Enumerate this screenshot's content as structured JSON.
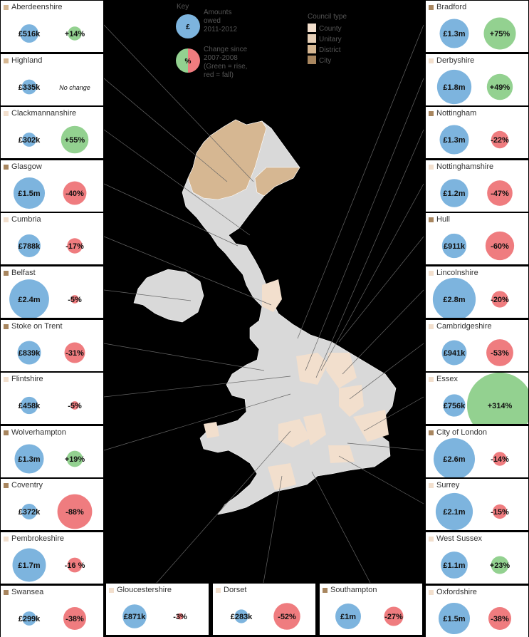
{
  "key": {
    "title": "Key",
    "amount_symbol": "£",
    "amount_text": [
      "Amounts",
      "owed",
      "2011-2012"
    ],
    "change_symbol": "%",
    "change_text": [
      "Change since",
      "2007-2008",
      "(Green = rise,",
      "red = fall)"
    ],
    "amount_color": "#7db4de",
    "rise_color": "#93d190",
    "fall_color": "#ef7c7f"
  },
  "council_type": {
    "title": "Council type",
    "types": [
      {
        "label": "County",
        "color": "#f2dfcd"
      },
      {
        "label": "Unitary",
        "color": "#e6cfb6"
      },
      {
        "label": "District",
        "color": "#d6b792"
      },
      {
        "label": "City",
        "color": "#a8865f"
      }
    ]
  },
  "left_panels": [
    {
      "name": "Aberdeenshire",
      "color": "#d6b792",
      "amount": {
        "value": 516000,
        "label": "£516k"
      },
      "change": {
        "value": 14,
        "label": "+14%"
      }
    },
    {
      "name": "Highland",
      "color": "#d6b792",
      "amount": {
        "value": 335000,
        "label": "£335k"
      },
      "change": {
        "value": 0,
        "label": "No change"
      }
    },
    {
      "name": "Clackmannanshire",
      "color": "#f2dfcd",
      "amount": {
        "value": 302000,
        "label": "£302k"
      },
      "change": {
        "value": 55,
        "label": "+55%"
      }
    },
    {
      "name": "Glasgow",
      "color": "#a8865f",
      "amount": {
        "value": 1500000,
        "label": "£1.5m"
      },
      "change": {
        "value": -40,
        "label": "-40%"
      }
    },
    {
      "name": "Cumbria",
      "color": "#f2dfcd",
      "amount": {
        "value": 788000,
        "label": "£788k"
      },
      "change": {
        "value": -17,
        "label": "-17%"
      }
    },
    {
      "name": "Belfast",
      "color": "#a8865f",
      "amount": {
        "value": 2400000,
        "label": "£2.4m"
      },
      "change": {
        "value": -5,
        "label": "-5%"
      }
    },
    {
      "name": "Stoke on Trent",
      "color": "#a8865f",
      "amount": {
        "value": 839000,
        "label": "£839k"
      },
      "change": {
        "value": -31,
        "label": "-31%"
      }
    },
    {
      "name": "Flintshire",
      "color": "#f2dfcd",
      "amount": {
        "value": 458000,
        "label": "£458k"
      },
      "change": {
        "value": -5,
        "label": "-5%"
      }
    },
    {
      "name": "Wolverhampton",
      "color": "#a8865f",
      "amount": {
        "value": 1300000,
        "label": "£1.3m"
      },
      "change": {
        "value": 19,
        "label": "+19%"
      }
    },
    {
      "name": "Coventry",
      "color": "#a8865f",
      "amount": {
        "value": 372000,
        "label": "£372k"
      },
      "change": {
        "value": -88,
        "label": "-88%"
      }
    },
    {
      "name": "Pembrokeshire",
      "color": "#f2dfcd",
      "amount": {
        "value": 1700000,
        "label": "£1.7m"
      },
      "change": {
        "value": -16,
        "label": "-16 %"
      }
    },
    {
      "name": "Swansea",
      "color": "#a8865f",
      "amount": {
        "value": 299000,
        "label": "£299k"
      },
      "change": {
        "value": -38,
        "label": "-38%"
      }
    }
  ],
  "right_panels": [
    {
      "name": "Bradford",
      "color": "#a8865f",
      "amount": {
        "value": 1300000,
        "label": "£1.3m"
      },
      "change": {
        "value": 75,
        "label": "+75%"
      }
    },
    {
      "name": "Derbyshire",
      "color": "#f2dfcd",
      "amount": {
        "value": 1800000,
        "label": "£1.8m"
      },
      "change": {
        "value": 49,
        "label": "+49%"
      }
    },
    {
      "name": "Nottingham",
      "color": "#a8865f",
      "amount": {
        "value": 1300000,
        "label": "£1.3m"
      },
      "change": {
        "value": -22,
        "label": "-22%"
      }
    },
    {
      "name": "Nottinghamshire",
      "color": "#f2dfcd",
      "amount": {
        "value": 1200000,
        "label": "£1.2m"
      },
      "change": {
        "value": -47,
        "label": "-47%"
      }
    },
    {
      "name": "Hull",
      "color": "#a8865f",
      "amount": {
        "value": 911000,
        "label": "£911k"
      },
      "change": {
        "value": -60,
        "label": "-60%"
      }
    },
    {
      "name": "Lincolnshire",
      "color": "#f2dfcd",
      "amount": {
        "value": 2800000,
        "label": "£2.8m"
      },
      "change": {
        "value": -20,
        "label": "-20%"
      }
    },
    {
      "name": "Cambridgeshire",
      "color": "#f2dfcd",
      "amount": {
        "value": 941000,
        "label": "£941k"
      },
      "change": {
        "value": -53,
        "label": "-53%"
      }
    },
    {
      "name": "Essex",
      "color": "#f2dfcd",
      "amount": {
        "value": 756000,
        "label": "£756k"
      },
      "change": {
        "value": 314,
        "label": "+314%"
      }
    },
    {
      "name": "City of London",
      "color": "#a8865f",
      "amount": {
        "value": 2600000,
        "label": "£2.6m"
      },
      "change": {
        "value": -14,
        "label": "-14%"
      }
    },
    {
      "name": "Surrey",
      "color": "#f2dfcd",
      "amount": {
        "value": 2100000,
        "label": "£2.1m"
      },
      "change": {
        "value": -15,
        "label": "-15%"
      }
    },
    {
      "name": "West Sussex",
      "color": "#f2dfcd",
      "amount": {
        "value": 1100000,
        "label": "£1.1m"
      },
      "change": {
        "value": 23,
        "label": "+23%"
      }
    },
    {
      "name": "Oxfordshire",
      "color": "#f2dfcd",
      "amount": {
        "value": 1500000,
        "label": "£1.5m"
      },
      "change": {
        "value": -38,
        "label": "-38%"
      }
    }
  ],
  "bottom_panels": [
    {
      "name": "Gloucestershire",
      "color": "#f2dfcd",
      "amount": {
        "value": 871000,
        "label": "£871k"
      },
      "change": {
        "value": -3,
        "label": "-3%"
      }
    },
    {
      "name": "Dorset",
      "color": "#f2dfcd",
      "amount": {
        "value": 283000,
        "label": "£283k"
      },
      "change": {
        "value": -52,
        "label": "-52%"
      }
    },
    {
      "name": "Southampton",
      "color": "#a8865f",
      "amount": {
        "value": 1000000,
        "label": "£1m"
      },
      "change": {
        "value": -27,
        "label": "-27%"
      }
    }
  ]
}
